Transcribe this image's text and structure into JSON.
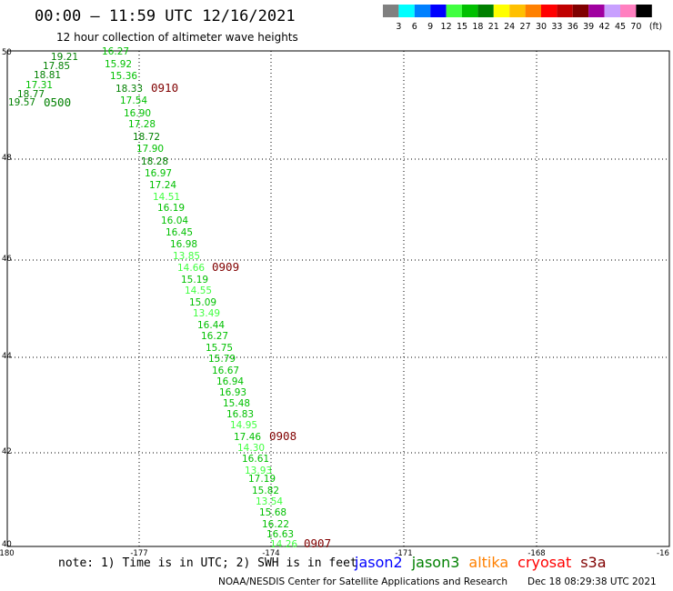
{
  "header": {
    "title": "00:00 – 11:59 UTC 12/16/2021",
    "subtitle": "12 hour collection of altimeter wave heights"
  },
  "scale": {
    "labels": [
      "3",
      "6",
      "9",
      "12",
      "15",
      "18",
      "21",
      "24",
      "27",
      "30",
      "33",
      "36",
      "39",
      "42",
      "45",
      "70"
    ],
    "unit": "(ft)",
    "colors": [
      "#808080",
      "#00ffff",
      "#0080ff",
      "#0000ff",
      "#40ff40",
      "#00c000",
      "#008000",
      "#ffff00",
      "#ffc000",
      "#ff8000",
      "#ff0000",
      "#c00000",
      "#800000",
      "#a000a0",
      "#c8a0ff",
      "#ff80c0",
      "#000000"
    ]
  },
  "map": {
    "lon_ticks": [
      "-180",
      "-177",
      "-174",
      "-171",
      "-168",
      "-16"
    ],
    "lat_ticks": [
      "50",
      "48",
      "46",
      "44",
      "42",
      "40"
    ],
    "points": [
      {
        "v": "19.21",
        "c": "#008000"
      },
      {
        "v": "17.85",
        "c": "#008000"
      },
      {
        "v": "18.81",
        "c": "#008000"
      },
      {
        "v": "17.31",
        "c": "#00c000"
      },
      {
        "v": "18.77",
        "c": "#008000"
      },
      {
        "v": "19.57",
        "c": "#008000"
      },
      {
        "v": "16.27",
        "c": "#00c000"
      },
      {
        "v": "15.92",
        "c": "#00c000"
      },
      {
        "v": "15.36",
        "c": "#00c000"
      },
      {
        "v": "18.33",
        "c": "#008000"
      },
      {
        "v": "17.54",
        "c": "#00c000"
      },
      {
        "v": "16.90",
        "c": "#00c000"
      },
      {
        "v": "17.28",
        "c": "#00c000"
      },
      {
        "v": "18.72",
        "c": "#008000"
      },
      {
        "v": "17.90",
        "c": "#00c000"
      },
      {
        "v": "18.28",
        "c": "#008000"
      },
      {
        "v": "16.97",
        "c": "#00c000"
      },
      {
        "v": "17.24",
        "c": "#00c000"
      },
      {
        "v": "14.51",
        "c": "#40ff40"
      },
      {
        "v": "16.19",
        "c": "#00c000"
      },
      {
        "v": "16.04",
        "c": "#00c000"
      },
      {
        "v": "16.45",
        "c": "#00c000"
      },
      {
        "v": "16.98",
        "c": "#00c000"
      },
      {
        "v": "13.85",
        "c": "#40ff40"
      },
      {
        "v": "14.66",
        "c": "#40ff40"
      },
      {
        "v": "15.19",
        "c": "#00c000"
      },
      {
        "v": "14.55",
        "c": "#40ff40"
      },
      {
        "v": "15.09",
        "c": "#00c000"
      },
      {
        "v": "13.49",
        "c": "#40ff40"
      },
      {
        "v": "16.44",
        "c": "#00c000"
      },
      {
        "v": "16.27",
        "c": "#00c000"
      },
      {
        "v": "15.75",
        "c": "#00c000"
      },
      {
        "v": "15.79",
        "c": "#00c000"
      },
      {
        "v": "16.67",
        "c": "#00c000"
      },
      {
        "v": "16.94",
        "c": "#00c000"
      },
      {
        "v": "16.93",
        "c": "#00c000"
      },
      {
        "v": "15.48",
        "c": "#00c000"
      },
      {
        "v": "16.83",
        "c": "#00c000"
      },
      {
        "v": "14.95",
        "c": "#40ff40"
      },
      {
        "v": "17.46",
        "c": "#00c000"
      },
      {
        "v": "14.30",
        "c": "#40ff40"
      },
      {
        "v": "16.61",
        "c": "#00c000"
      },
      {
        "v": "13.93",
        "c": "#40ff40"
      },
      {
        "v": "17.19",
        "c": "#00c000"
      },
      {
        "v": "15.82",
        "c": "#00c000"
      },
      {
        "v": "13.54",
        "c": "#40ff40"
      },
      {
        "v": "15.68",
        "c": "#00c000"
      },
      {
        "v": "16.22",
        "c": "#00c000"
      },
      {
        "v": "16.63",
        "c": "#00c000"
      },
      {
        "v": "14.26",
        "c": "#40ff40"
      }
    ],
    "time_labels": [
      {
        "t": "0500",
        "c": "#008000"
      },
      {
        "t": "0910",
        "c": "#800000"
      },
      {
        "t": "0909",
        "c": "#800000"
      },
      {
        "t": "0908",
        "c": "#800000"
      },
      {
        "t": "0907",
        "c": "#800000"
      }
    ]
  },
  "footer": {
    "note": "note: 1) Time is in UTC; 2) SWH is in feet",
    "satellites": [
      {
        "name": "jason2",
        "color": "#0000ff"
      },
      {
        "name": "jason3",
        "color": "#008000"
      },
      {
        "name": "altika",
        "color": "#ff8000"
      },
      {
        "name": "cryosat",
        "color": "#ff0000"
      },
      {
        "name": "s3a",
        "color": "#800000"
      }
    ],
    "credit": "NOAA/NESDIS Center for Satellite Applications and Research",
    "timestamp": "Dec 18 08:29:38 UTC 2021"
  }
}
